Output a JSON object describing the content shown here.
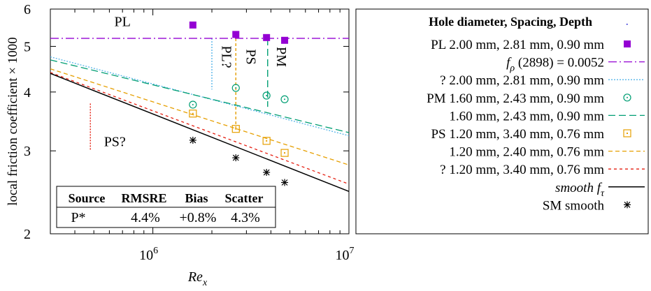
{
  "chart_data": {
    "type": "line",
    "xlabel": "Re",
    "xlabel_sub": "x",
    "ylabel": "local friction coefficient × 1000",
    "xscale": "log",
    "yscale": "log",
    "xlim": [
      300000,
      10000000
    ],
    "ylim": [
      2,
      6
    ],
    "xticks": [
      {
        "value": 1000000,
        "base": "10",
        "exp": "6"
      },
      {
        "value": 10000000,
        "base": "10",
        "exp": "7"
      }
    ],
    "yticks": [
      {
        "value": 2,
        "label": "2"
      },
      {
        "value": 3,
        "label": "3"
      },
      {
        "value": 4,
        "label": "4"
      },
      {
        "value": 5,
        "label": "5"
      },
      {
        "value": 6,
        "label": "6"
      }
    ],
    "legend_header": "Hole diameter,  Spacing,  Depth",
    "legend_placement": "outside-right",
    "series": [
      {
        "name": "PL 2.00 mm, 2.81 mm, 0.90 mm",
        "kind": "points",
        "marker": "filled-square",
        "color": "#9400d3",
        "x": [
          1600000,
          2650000,
          3800000,
          4700000
        ],
        "y": [
          5.55,
          5.3,
          5.22,
          5.15
        ]
      },
      {
        "name_prefix": "f",
        "name_sub": "ρ",
        "name_suffix": " (2898) = 0.0052",
        "kind": "line",
        "dash": "12,4,2,4",
        "color": "#9400d3",
        "x": [
          300000,
          10000000
        ],
        "y": [
          5.2,
          5.2
        ]
      },
      {
        "name": "?  2.00 mm, 2.81 mm, 0.90 mm",
        "kind": "line",
        "dash": "2,2",
        "color": "#56b4e9",
        "x": [
          300000,
          10000000
        ],
        "y": [
          4.75,
          3.23
        ]
      },
      {
        "name": "PM 1.60 mm, 2.43 mm, 0.90 mm",
        "kind": "points",
        "marker": "open-circle",
        "color": "#009e73",
        "x": [
          1600000,
          2650000,
          3800000,
          4700000
        ],
        "y": [
          3.76,
          4.08,
          3.93,
          3.86
        ]
      },
      {
        "name": "1.60 mm, 2.43 mm, 0.90 mm",
        "kind": "line",
        "dash": "10,5",
        "color": "#009e73",
        "x": [
          300000,
          10000000
        ],
        "y": [
          4.68,
          3.28
        ]
      },
      {
        "name": "PS 1.20 mm, 3.40 mm, 0.76 mm",
        "kind": "points",
        "marker": "open-square",
        "color": "#e69f00",
        "x": [
          1600000,
          2650000,
          3800000,
          4700000
        ],
        "y": [
          3.6,
          3.34,
          3.15,
          2.97
        ]
      },
      {
        "name": "1.20 mm, 2.40 mm, 0.76 mm",
        "kind": "line",
        "dash": "6,4",
        "color": "#e69f00",
        "x": [
          300000,
          10000000
        ],
        "y": [
          4.48,
          2.8
        ]
      },
      {
        "name": "?  1.20 mm, 3.40 mm, 0.76 mm",
        "kind": "line",
        "dash": "4,4",
        "color": "#e51e10",
        "x": [
          300000,
          10000000
        ],
        "y": [
          4.4,
          2.55
        ]
      },
      {
        "name_prefix": "smooth  f",
        "name_sub": "τ",
        "name_suffix": "",
        "kind": "line",
        "dash": "",
        "color": "#000000",
        "x": [
          300000,
          10000000
        ],
        "y": [
          4.38,
          2.46
        ]
      },
      {
        "name": "SM smooth",
        "kind": "points",
        "marker": "star",
        "color": "#000000",
        "x": [
          1600000,
          2650000,
          3800000,
          4700000
        ],
        "y": [
          3.16,
          2.9,
          2.7,
          2.57
        ]
      }
    ],
    "annotations": [
      {
        "text": "PL",
        "x": 700000,
        "y": 5.52,
        "rotate": false
      },
      {
        "text": "PL?",
        "x": 2250000,
        "y": 4.75,
        "rotate": true
      },
      {
        "text": "PS",
        "x": 3000000,
        "y": 4.75,
        "rotate": true
      },
      {
        "text": "PM",
        "x": 4300000,
        "y": 4.75,
        "rotate": true
      },
      {
        "text": "PS?",
        "x": 640000,
        "y": 3.07,
        "rotate": false
      }
    ],
    "guide_lines": [
      {
        "color": "#56b4e9",
        "dash": "2,2",
        "x": 2000000,
        "y": [
          5.2,
          4.05
        ]
      },
      {
        "color": "#e69f00",
        "dash": "4,3",
        "x": 2650000,
        "y": [
          5.2,
          3.34
        ]
      },
      {
        "color": "#009e73",
        "dash": "10,5",
        "x": 3850000,
        "y": [
          5.2,
          3.72
        ]
      },
      {
        "color": "#e51e10",
        "dash": "2,2",
        "x": 480000,
        "y": [
          3.78,
          3.0
        ]
      }
    ],
    "inset_table": {
      "columns": [
        "Source",
        "RMSRE",
        "Bias",
        "Scatter"
      ],
      "rows": [
        [
          "P*",
          "4.4%",
          "+0.8%",
          "4.3%"
        ]
      ]
    }
  }
}
